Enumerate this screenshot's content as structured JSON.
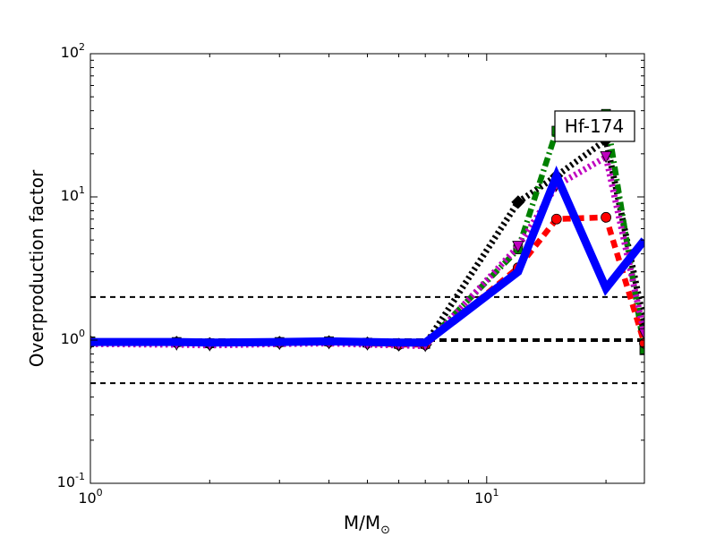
{
  "chart_data": {
    "type": "line",
    "title": "",
    "xlabel": "M/M",
    "xlabel_sub": "⊙",
    "ylabel": "Overproduction factor",
    "xscale": "log",
    "yscale": "log",
    "xlim": [
      1,
      25
    ],
    "ylim": [
      0.1,
      100
    ],
    "grid": false,
    "x_ticks": [
      {
        "value": 1,
        "base": "10",
        "exp": "0"
      },
      {
        "value": 10,
        "base": "10",
        "exp": "1"
      }
    ],
    "y_ticks": [
      {
        "value": 0.1,
        "base": "10",
        "exp": "-1"
      },
      {
        "value": 1,
        "base": "10",
        "exp": "0"
      },
      {
        "value": 10,
        "base": "10",
        "exp": "1"
      },
      {
        "value": 100,
        "base": "10",
        "exp": "2"
      }
    ],
    "annotation": "Hf-174",
    "reference_lines": [
      {
        "y": 2.0,
        "style": "dashed",
        "color": "#000000",
        "weight": "thin"
      },
      {
        "y": 1.0,
        "style": "dashed",
        "color": "#000000",
        "weight": "thick"
      },
      {
        "y": 0.5,
        "style": "dashed",
        "color": "#000000",
        "weight": "thin"
      }
    ],
    "series": [
      {
        "color": "#000000",
        "style": "dotted",
        "marker": "diamond",
        "x": [
          1,
          1.65,
          2,
          3,
          4,
          5,
          6,
          7,
          12,
          15,
          20,
          25
        ],
        "y": [
          0.97,
          0.96,
          0.94,
          0.96,
          0.97,
          0.95,
          0.93,
          0.93,
          9.2,
          14,
          25,
          1.3
        ]
      },
      {
        "color": "#008000",
        "style": "dashdot",
        "marker": "square",
        "x": [
          1,
          1.65,
          2,
          3,
          4,
          5,
          6,
          7,
          12,
          15,
          20,
          25
        ],
        "y": [
          0.98,
          0.97,
          0.95,
          0.97,
          0.98,
          0.96,
          0.94,
          0.94,
          4.3,
          29,
          38,
          0.85
        ]
      },
      {
        "color": "#ff0000",
        "style": "dashed",
        "marker": "circle",
        "x": [
          1,
          1.65,
          2,
          3,
          4,
          5,
          6,
          7,
          12,
          15,
          20,
          25
        ],
        "y": [
          0.97,
          0.96,
          0.95,
          0.96,
          0.97,
          0.95,
          0.93,
          0.93,
          3.2,
          7.0,
          7.2,
          0.95
        ]
      },
      {
        "color": "#bf00bf",
        "style": "dotted",
        "marker": "triangle-down",
        "x": [
          1,
          1.65,
          2,
          3,
          4,
          5,
          6,
          7,
          12,
          15,
          20,
          25
        ],
        "y": [
          0.94,
          0.93,
          0.92,
          0.94,
          0.95,
          0.93,
          0.92,
          0.91,
          4.5,
          12,
          19,
          1.1
        ]
      },
      {
        "color": "#0000ff",
        "style": "solid",
        "marker": "none",
        "x": [
          1,
          1.65,
          2,
          3,
          4,
          5,
          6,
          7,
          12,
          15,
          20,
          25
        ],
        "y": [
          0.97,
          0.97,
          0.96,
          0.97,
          0.98,
          0.97,
          0.96,
          0.96,
          3.0,
          14,
          2.3,
          5.0
        ]
      }
    ]
  }
}
